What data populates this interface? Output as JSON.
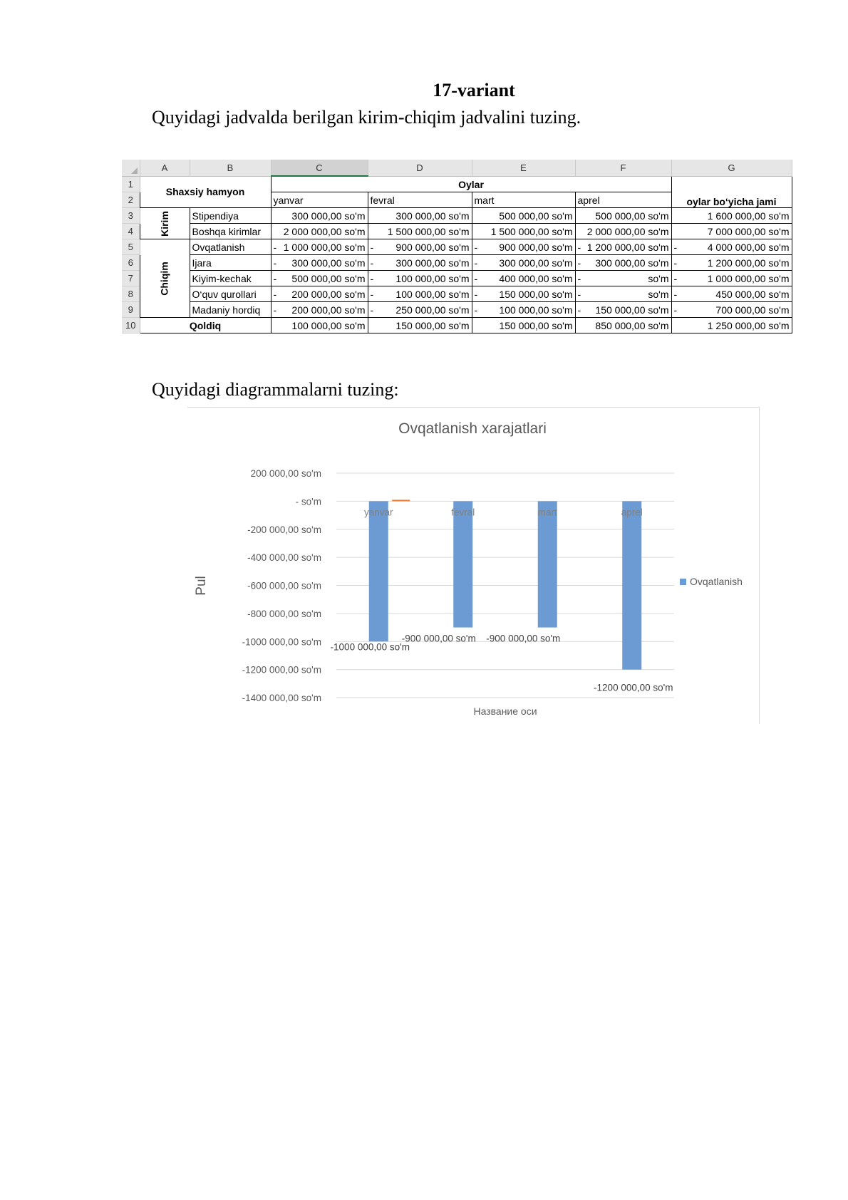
{
  "document": {
    "title": "17-variant",
    "instruction_table": "Quyidagi jadvalda berilgan kirim-chiqim jadvalini tuzing.",
    "instruction_chart": "Quyidagi diagrammalarni tuzing:"
  },
  "sheet": {
    "columns": [
      "A",
      "B",
      "C",
      "D",
      "E",
      "F",
      "G"
    ],
    "row_numbers": [
      "1",
      "2",
      "3",
      "4",
      "5",
      "6",
      "7",
      "8",
      "9",
      "10"
    ],
    "header_main": "Shaxsiy hamyon",
    "header_months": "Oylar",
    "months": [
      "yanvar",
      "fevral",
      "mart",
      "aprel"
    ],
    "header_total": "oylar bo‘yicha jami",
    "group_income": "Kirim",
    "group_expense": "Chiqim",
    "rows": [
      {
        "name": "Stipendiya",
        "values": [
          "300 000,00 so'm",
          "300 000,00 so'm",
          "500 000,00 so'm",
          "500 000,00 so'm"
        ],
        "neg": [
          false,
          false,
          false,
          false
        ],
        "total": "1 600 000,00 so'm",
        "total_neg": false
      },
      {
        "name": "Boshqa kirimlar",
        "values": [
          "2 000 000,00 so'm",
          "1 500 000,00 so'm",
          "1 500 000,00 so'm",
          "2 000 000,00 so'm"
        ],
        "neg": [
          false,
          false,
          false,
          false
        ],
        "total": "7 000 000,00 so'm",
        "total_neg": false
      },
      {
        "name": "Ovqatlanish",
        "values": [
          "1 000 000,00 so'm",
          "900 000,00 so'm",
          "900 000,00 so'm",
          "1 200 000,00 so'm"
        ],
        "neg": [
          true,
          true,
          true,
          true
        ],
        "total": "4 000 000,00 so'm",
        "total_neg": true
      },
      {
        "name": "Ijara",
        "values": [
          "300 000,00 so'm",
          "300 000,00 so'm",
          "300 000,00 so'm",
          "300 000,00 so'm"
        ],
        "neg": [
          true,
          true,
          true,
          true
        ],
        "total": "1 200 000,00 so'm",
        "total_neg": true
      },
      {
        "name": "Kiyim-kechak",
        "values": [
          "500 000,00 so'm",
          "100 000,00 so'm",
          "400 000,00 so'm",
          "so'm"
        ],
        "neg": [
          true,
          true,
          true,
          true
        ],
        "total": "1 000 000,00 so'm",
        "total_neg": true
      },
      {
        "name": "O‘quv qurollari",
        "values": [
          "200 000,00 so'm",
          "100 000,00 so'm",
          "150 000,00 so'm",
          "so'm"
        ],
        "neg": [
          true,
          true,
          true,
          true
        ],
        "total": "450 000,00 so'm",
        "total_neg": true
      },
      {
        "name": "Madaniy hordiq",
        "values": [
          "200 000,00 so'm",
          "250 000,00 so'm",
          "100 000,00 so'm",
          "150 000,00 so'm"
        ],
        "neg": [
          true,
          true,
          true,
          true
        ],
        "total": "700 000,00 so'm",
        "total_neg": true
      }
    ],
    "balance": {
      "name": "Qoldiq",
      "values": [
        "100 000,00 so'm",
        "150 000,00 so'm",
        "150 000,00 so'm",
        "850 000,00 so'm"
      ],
      "total": "1 250 000,00 so'm"
    }
  },
  "chart_data": {
    "type": "bar",
    "title": "Ovqatlanish xarajatlari",
    "xlabel": "Название оси",
    "ylabel": "Pul",
    "categories": [
      "yanvar",
      "fevral",
      "mart",
      "aprel"
    ],
    "series": [
      {
        "name": "Ovqatlanish",
        "values": [
          -1000000,
          -900000,
          -900000,
          -1200000
        ],
        "color": "#6b9bd2"
      }
    ],
    "data_labels": [
      "-1000 000,00 so'm",
      "-900 000,00 so'm",
      "-900 000,00 so'm",
      "-1200 000,00 so'm"
    ],
    "ylim": [
      -1400000,
      200000
    ],
    "yticks": [
      200000,
      0,
      -200000,
      -400000,
      -600000,
      -800000,
      -1000000,
      -1200000,
      -1400000
    ],
    "ytick_labels": [
      "200 000,00 so'm",
      "-   so'm",
      "-200 000,00 so'm",
      "-400 000,00 so'm",
      "-600 000,00 so'm",
      "-800 000,00 so'm",
      "-1000 000,00 so'm",
      "-1200 000,00 so'm",
      "-1400 000,00 so'm"
    ],
    "grid": true,
    "legend": "right"
  }
}
